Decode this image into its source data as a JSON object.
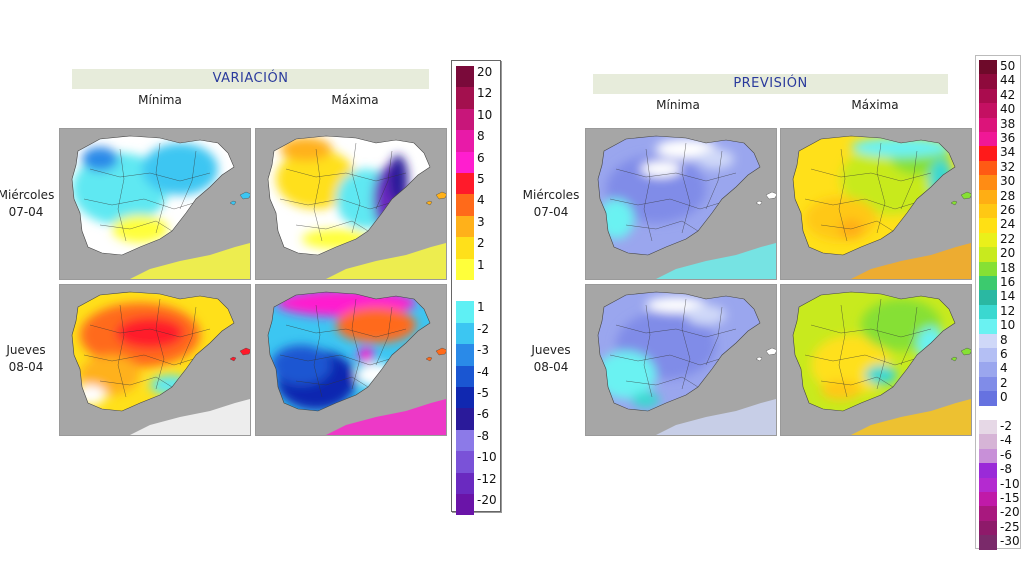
{
  "variacion": {
    "title": "VARIACIÓN",
    "col_min": "Mínima",
    "col_max": "Máxima",
    "row1": {
      "day": "Miércoles",
      "date": "07-04"
    },
    "row2": {
      "day": "Jueves",
      "date": "08-04"
    },
    "legend": [
      {
        "label": "20",
        "color": "#7a0a3a"
      },
      {
        "label": "12",
        "color": "#a3104e"
      },
      {
        "label": "10",
        "color": "#c8167a"
      },
      {
        "label": "8",
        "color": "#e81aa8"
      },
      {
        "label": "6",
        "color": "#ff1ecf"
      },
      {
        "label": "5",
        "color": "#ff1a2a"
      },
      {
        "label": "4",
        "color": "#ff6a1a"
      },
      {
        "label": "3",
        "color": "#ffb11a"
      },
      {
        "label": "2",
        "color": "#ffe01a"
      },
      {
        "label": "1",
        "color": "#ffff3a"
      },
      {
        "label": "",
        "color": "#ffffff"
      },
      {
        "label": "1",
        "color": "#5ef0f4"
      },
      {
        "label": "-2",
        "color": "#3cc6f2"
      },
      {
        "label": "-3",
        "color": "#2a8ae8"
      },
      {
        "label": "-4",
        "color": "#1a56d2"
      },
      {
        "label": "-5",
        "color": "#1028b0"
      },
      {
        "label": "-6",
        "color": "#2a1a9a"
      },
      {
        "label": "-8",
        "color": "#8c7ae8"
      },
      {
        "label": "-10",
        "color": "#7a52d8"
      },
      {
        "label": "-12",
        "color": "#6a2ac0"
      },
      {
        "label": "-20",
        "color": "#6a14a8"
      }
    ]
  },
  "prevision": {
    "title": "PREVISIÓN",
    "col_min": "Mínima",
    "col_max": "Máxima",
    "row1": {
      "day": "Miércoles",
      "date": "07-04"
    },
    "row2": {
      "day": "Jueves",
      "date": "08-04"
    },
    "legend": [
      {
        "label": "50",
        "color": "#6e0a2a"
      },
      {
        "label": "44",
        "color": "#8e0a3c"
      },
      {
        "label": "42",
        "color": "#aa0c4e"
      },
      {
        "label": "40",
        "color": "#c41062"
      },
      {
        "label": "38",
        "color": "#dc147a"
      },
      {
        "label": "36",
        "color": "#f01896"
      },
      {
        "label": "34",
        "color": "#ff1a1a"
      },
      {
        "label": "32",
        "color": "#ff5a14"
      },
      {
        "label": "30",
        "color": "#ff8c14"
      },
      {
        "label": "28",
        "color": "#ffae14"
      },
      {
        "label": "26",
        "color": "#ffc814"
      },
      {
        "label": "24",
        "color": "#ffe014"
      },
      {
        "label": "22",
        "color": "#eaf01a"
      },
      {
        "label": "20",
        "color": "#c8ea1e"
      },
      {
        "label": "18",
        "color": "#86e034"
      },
      {
        "label": "16",
        "color": "#3cca6e"
      },
      {
        "label": "14",
        "color": "#2ab8a2"
      },
      {
        "label": "12",
        "color": "#3ad8d0"
      },
      {
        "label": "10",
        "color": "#6af2f2"
      },
      {
        "label": "8",
        "color": "#cfd8f8"
      },
      {
        "label": "6",
        "color": "#b4bff4"
      },
      {
        "label": "4",
        "color": "#9aa6ee"
      },
      {
        "label": "2",
        "color": "#808ce8"
      },
      {
        "label": "0",
        "color": "#6672e0"
      },
      {
        "label": "",
        "color": "#ffffff"
      },
      {
        "label": "-2",
        "color": "#e6d8e6"
      },
      {
        "label": "-4",
        "color": "#d6b4d6"
      },
      {
        "label": "-6",
        "color": "#c890d8"
      },
      {
        "label": "-8",
        "color": "#9a2ad8"
      },
      {
        "label": "-10",
        "color": "#b42ad0"
      },
      {
        "label": "-15",
        "color": "#c01aa8"
      },
      {
        "label": "-20",
        "color": "#a8187e"
      },
      {
        "label": "-25",
        "color": "#8e1a6a"
      },
      {
        "label": "-30",
        "color": "#7a2a6a"
      }
    ]
  },
  "colors": {
    "sea": "#a6a6a6",
    "title_bg": "#e7ecdb",
    "title_text": "#2a3a9c"
  }
}
